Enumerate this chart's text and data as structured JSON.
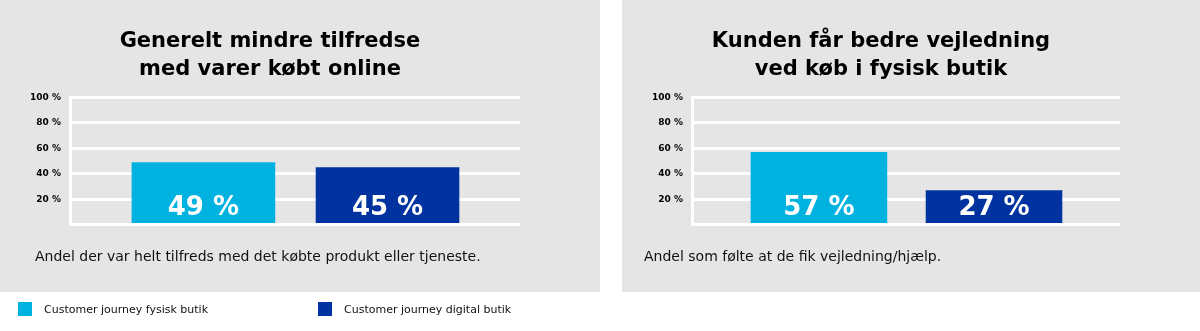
{
  "chart_data": [
    {
      "type": "bar",
      "title": "Generelt mindre tilfredse\nmed varer købt online",
      "categories": [
        null
      ],
      "series": [
        {
          "name": "Customer journey fysisk butik",
          "color": "#00b2e0",
          "values": [
            49
          ],
          "value_labels": [
            "49 %"
          ]
        },
        {
          "name": "Customer journey digital butik",
          "color": "#0033a0",
          "values": [
            45
          ],
          "value_labels": [
            "45 %"
          ]
        }
      ],
      "ylim": [
        0,
        100
      ],
      "yticks": [
        {
          "value": 0,
          "label": null
        },
        {
          "value": 20,
          "label": "20 %"
        },
        {
          "value": 40,
          "label": "40 %"
        },
        {
          "value": 60,
          "label": "60 %"
        },
        {
          "value": 80,
          "label": "80 %"
        },
        {
          "value": 100,
          "label": "100 %"
        }
      ],
      "grid": "y",
      "legend": "bottom",
      "annotations": [
        "Andel der var helt tilfreds med det købte produkt eller tjeneste."
      ]
    },
    {
      "type": "bar",
      "title": "Kunden får bedre vejledning\nved køb i fysisk butik",
      "categories": [
        null
      ],
      "series": [
        {
          "color": "#00b2e0",
          "values": [
            57
          ],
          "value_labels": [
            "57 %"
          ]
        },
        {
          "color": "#0033a0",
          "values": [
            27
          ],
          "value_labels": [
            "27 %"
          ]
        }
      ],
      "ylim": [
        0,
        100
      ],
      "yticks": [
        {
          "value": 0,
          "label": null
        },
        {
          "value": 20,
          "label": "20 %"
        },
        {
          "value": 40,
          "label": "40 %"
        },
        {
          "value": 60,
          "label": "60 %"
        },
        {
          "value": 80,
          "label": "80 %"
        },
        {
          "value": 100,
          "label": "100 %"
        }
      ],
      "grid": "y",
      "annotations": [
        "Andel som følte at de fik vejledning/hjælp."
      ]
    }
  ]
}
